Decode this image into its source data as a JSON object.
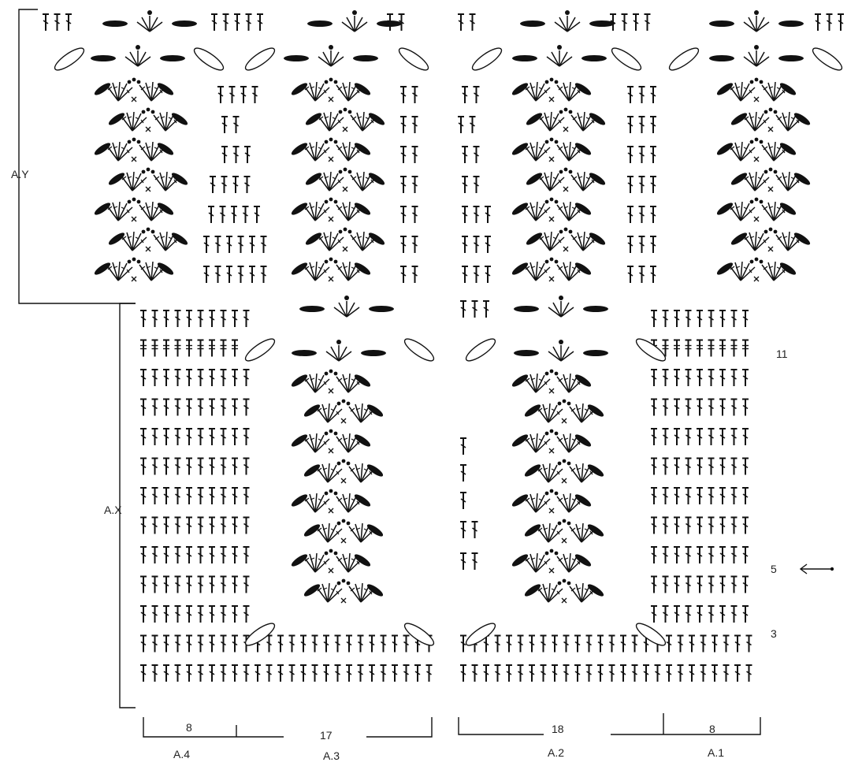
{
  "labels": {
    "section_y": "A.Y",
    "section_x": "A.X",
    "row_11": "11",
    "row_5": "5",
    "row_3": "3"
  },
  "bottom": {
    "count_a4": "8",
    "count_a3": "17",
    "count_a2": "18",
    "count_a1": "8",
    "name_a4": "A.4",
    "name_a3": "A.3",
    "name_a2": "A.2",
    "name_a1": "A.1"
  },
  "colors": {
    "ink": "#111111",
    "background": "#ffffff"
  },
  "icons": {
    "direction": "arrow-left-icon"
  }
}
